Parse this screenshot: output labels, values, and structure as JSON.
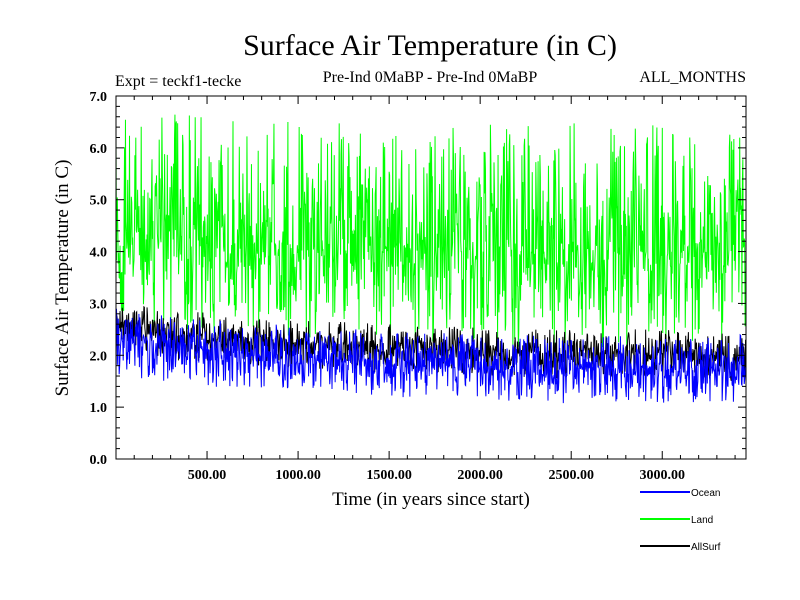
{
  "chart_data": {
    "type": "line",
    "title": "Surface Air Temperature (in C)",
    "subtitle_left": "Expt = teckf1-tecke",
    "subtitle_center": "Pre-Ind 0MaBP - Pre-Ind 0MaBP",
    "subtitle_right": "ALL_MONTHS",
    "xlabel": "Time (in years since start)",
    "ylabel": "Surface Air Temperature (in C)",
    "xlim": [
      0,
      3460
    ],
    "ylim": [
      0.0,
      7.0
    ],
    "x_ticks": [
      500,
      1000,
      1500,
      2000,
      2500,
      3000
    ],
    "x_tick_labels": [
      "500.00",
      "1000.00",
      "1500.00",
      "2000.00",
      "2500.00",
      "3000.00"
    ],
    "y_ticks": [
      0,
      1,
      2,
      3,
      4,
      5,
      6,
      7
    ],
    "y_tick_labels": [
      "0.0",
      "1.0",
      "2.0",
      "3.0",
      "4.0",
      "5.0",
      "6.0",
      "7.0"
    ],
    "series": [
      {
        "name": "Land",
        "color": "#00ff00",
        "x": [
          0,
          250,
          500,
          750,
          1000,
          1250,
          1500,
          1750,
          2000,
          2250,
          2500,
          2750,
          3000,
          3250,
          3460
        ],
        "mean": [
          4.3,
          4.25,
          4.2,
          4.15,
          4.12,
          4.1,
          4.08,
          4.05,
          4.03,
          4.02,
          4.02,
          4.03,
          4.02,
          4.0,
          4.0
        ],
        "min": [
          2.5,
          2.45,
          2.4,
          2.3,
          2.3,
          2.25,
          2.2,
          2.2,
          2.15,
          2.15,
          2.15,
          2.15,
          2.15,
          2.1,
          2.1
        ],
        "max": [
          6.6,
          6.7,
          6.7,
          6.5,
          6.6,
          6.5,
          6.6,
          6.4,
          6.5,
          6.5,
          6.6,
          6.4,
          6.5,
          6.3,
          6.3
        ]
      },
      {
        "name": "AllSurf",
        "color": "#000000",
        "x": [
          0,
          250,
          500,
          750,
          1000,
          1250,
          1500,
          1750,
          2000,
          2250,
          2500,
          2750,
          3000,
          3250,
          3460
        ],
        "mean": [
          2.5,
          2.4,
          2.35,
          2.3,
          2.25,
          2.2,
          2.15,
          2.1,
          2.08,
          2.05,
          2.05,
          2.05,
          2.05,
          2.0,
          2.0
        ],
        "min": [
          2.0,
          1.9,
          1.85,
          1.8,
          1.75,
          1.7,
          1.65,
          1.6,
          1.6,
          1.55,
          1.55,
          1.55,
          1.55,
          1.5,
          1.5
        ],
        "max": [
          3.0,
          2.9,
          2.85,
          2.75,
          2.7,
          2.65,
          2.6,
          2.55,
          2.55,
          2.5,
          2.5,
          2.5,
          2.5,
          2.45,
          2.45
        ]
      },
      {
        "name": "Ocean",
        "color": "#0000ff",
        "x": [
          0,
          250,
          500,
          750,
          1000,
          1250,
          1500,
          1750,
          2000,
          2250,
          2500,
          2750,
          3000,
          3250,
          3460
        ],
        "mean": [
          2.3,
          2.2,
          2.1,
          2.0,
          1.95,
          1.9,
          1.85,
          1.8,
          1.75,
          1.75,
          1.73,
          1.75,
          1.72,
          1.7,
          1.7
        ],
        "min": [
          1.6,
          1.5,
          1.4,
          1.35,
          1.3,
          1.25,
          1.2,
          1.15,
          1.1,
          1.1,
          1.05,
          1.1,
          1.05,
          1.05,
          1.1
        ],
        "max": [
          2.9,
          2.8,
          2.7,
          2.6,
          2.6,
          2.5,
          2.5,
          2.45,
          2.4,
          2.4,
          2.4,
          2.4,
          2.35,
          2.35,
          2.4
        ]
      }
    ],
    "legend": [
      {
        "name": "Ocean",
        "color": "#0000ff"
      },
      {
        "name": "Land",
        "color": "#00ff00"
      },
      {
        "name": "AllSurf",
        "color": "#000000"
      }
    ],
    "legend_position": "bottom-right"
  }
}
